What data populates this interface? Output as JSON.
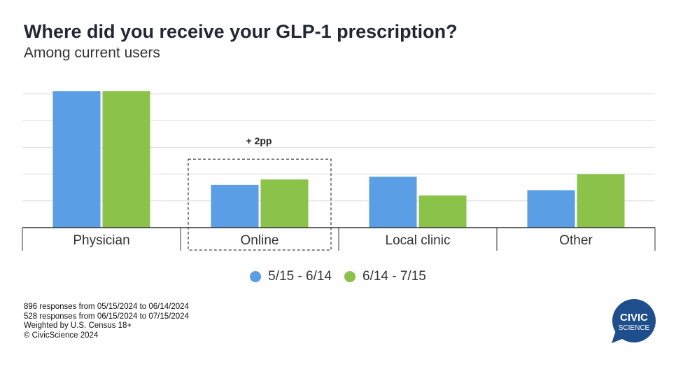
{
  "chart_data": {
    "type": "bar",
    "title": "Where did you receive your GLP-1 prescription?",
    "subtitle": "Among current users",
    "categories": [
      "Physician",
      "Online",
      "Local clinic",
      "Other"
    ],
    "series": [
      {
        "name": "5/15 - 6/14",
        "color": "#5a9ee6",
        "values": [
          51,
          16,
          19,
          14
        ]
      },
      {
        "name": "6/14 - 7/15",
        "color": "#8bc34a",
        "values": [
          51,
          18,
          12,
          20
        ]
      }
    ],
    "ylim": [
      0,
      50
    ],
    "grid": true,
    "legend_position": "bottom",
    "annotations": [
      {
        "text": "+ 2pp",
        "category": "Online",
        "style": "dashed-box"
      }
    ]
  },
  "footnotes": [
    "896 responses from 05/15/2024 to 06/14/2024",
    "528 responses from 06/15/2024 to 07/15/2024",
    "Weighted by U.S. Census 18+",
    "© CivicScience 2024"
  ],
  "logo": {
    "line1": "CIVIC",
    "line2": "SCIENCE",
    "icon": "speech-bubble-logo",
    "color": "#1f4e8c"
  }
}
